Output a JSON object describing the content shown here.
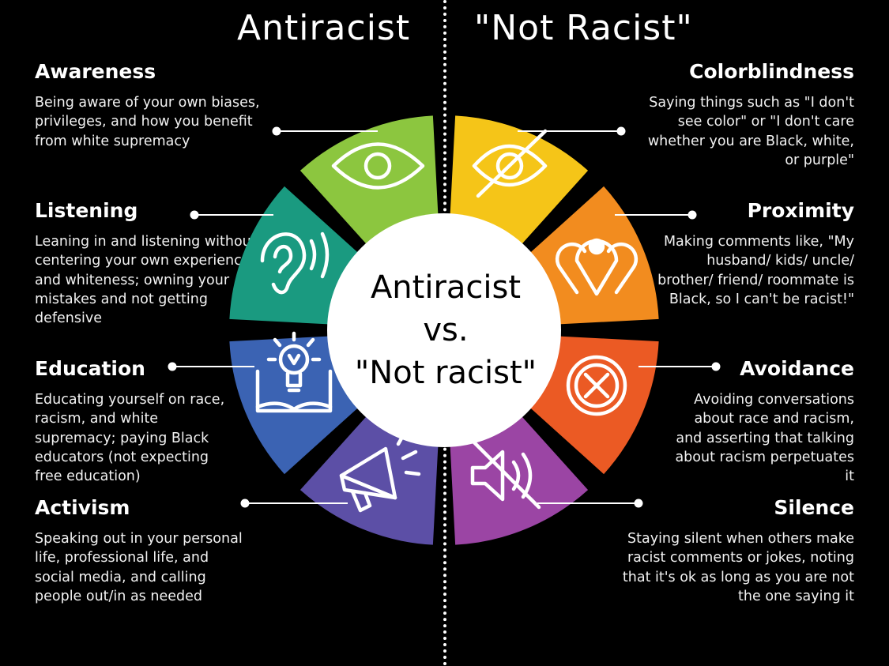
{
  "headers": {
    "left": "Antiracist",
    "right": "\"Not Racist\""
  },
  "center": {
    "line1": "Antiracist",
    "line2": "vs.",
    "line3": "\"Not racist\""
  },
  "antiracist": [
    {
      "title": "Awareness",
      "text": "Being aware of your own biases, privileges, and how you benefit from white supremacy",
      "color": "#8cc63f",
      "icon": "eye-icon"
    },
    {
      "title": "Listening",
      "text": "Leaning in and listening without centering your own experiences and whiteness; owning your mistakes and not getting defensive",
      "color": "#1a9a80",
      "icon": "ear-icon"
    },
    {
      "title": "Education",
      "text": "Educating yourself on race, racism, and white supremacy; paying Black educators (not expecting free education)",
      "color": "#3b63b3",
      "icon": "book-lightbulb-icon"
    },
    {
      "title": "Activism",
      "text": "Speaking out in your personal life, professional life, and social media, and calling people out/in as needed",
      "color": "#5c4fa6",
      "icon": "megaphone-icon"
    }
  ],
  "not_racist": [
    {
      "title": "Colorblindness",
      "text": "Saying things such as \"I don't see color\" or \"I don't care whether you are Black, white, or purple\"",
      "color": "#f5c518",
      "icon": "eye-slash-icon"
    },
    {
      "title": "Proximity",
      "text": "Making comments like, \"My husband/ kids/ uncle/ brother/ friend/ roommate is Black, so I can't be racist!\"",
      "color": "#f28c1f",
      "icon": "location-pins-icon"
    },
    {
      "title": "Avoidance",
      "text": "Avoiding conversations about race and racism, and asserting that talking about racism perpetuates it",
      "color": "#eb5a24",
      "icon": "x-circle-icon"
    },
    {
      "title": "Silence",
      "text": "Staying silent when others make racist comments or jokes, noting that it's ok as long as you are not the one saying it",
      "color": "#9b45a4",
      "icon": "mute-icon"
    }
  ]
}
